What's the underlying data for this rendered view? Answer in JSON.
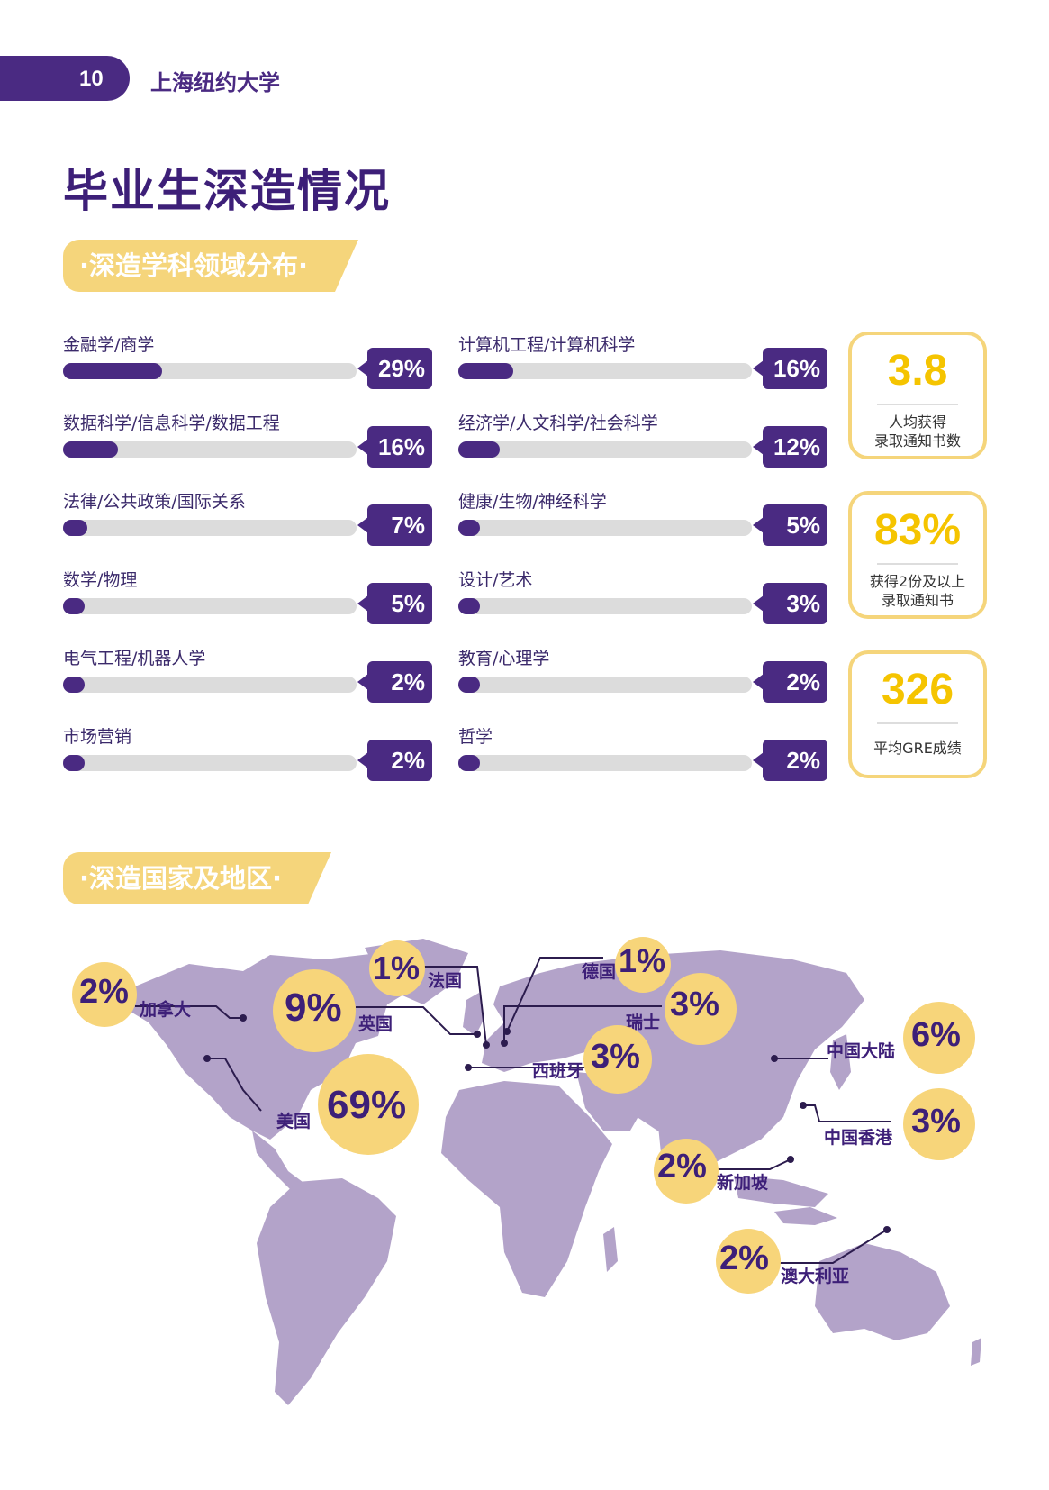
{
  "header": {
    "page_number": "10",
    "school": "上海纽约大学"
  },
  "title": "毕业生深造情况",
  "section_fields": "·深造学科领域分布·",
  "section_regions": "·深造国家及地区·",
  "fields_left": [
    {
      "label": "金融学/商学",
      "percent": 29,
      "display": "29%"
    },
    {
      "label": "数据科学/信息科学/数据工程",
      "percent": 16,
      "display": "16%"
    },
    {
      "label": "法律/公共政策/国际关系",
      "percent": 7,
      "display": "7%"
    },
    {
      "label": "数学/物理",
      "percent": 5,
      "display": "5%"
    },
    {
      "label": "电气工程/机器人学",
      "percent": 2,
      "display": "2%"
    },
    {
      "label": "市场营销",
      "percent": 2,
      "display": "2%"
    }
  ],
  "fields_right": [
    {
      "label": "计算机工程/计算机科学",
      "percent": 16,
      "display": "16%"
    },
    {
      "label": "经济学/人文科学/社会科学",
      "percent": 12,
      "display": "12%"
    },
    {
      "label": "健康/生物/神经科学",
      "percent": 5,
      "display": "5%"
    },
    {
      "label": "设计/艺术",
      "percent": 3,
      "display": "3%"
    },
    {
      "label": "教育/心理学",
      "percent": 2,
      "display": "2%"
    },
    {
      "label": "哲学",
      "percent": 2,
      "display": "2%"
    }
  ],
  "stats": [
    {
      "value": "3.8",
      "label_line1": "人均获得",
      "label_line2": "录取通知书数"
    },
    {
      "value": "83%",
      "label_line1": "获得2份及以上",
      "label_line2": "录取通知书"
    },
    {
      "value": "326",
      "label_line1": "平均GRE成绩"
    }
  ],
  "regions": [
    {
      "name": "加拿大",
      "display": "2%"
    },
    {
      "name": "英国",
      "display": "9%"
    },
    {
      "name": "美国",
      "display": "69%"
    },
    {
      "name": "法国",
      "display": "1%"
    },
    {
      "name": "德国",
      "display": "1%"
    },
    {
      "name": "瑞士",
      "display": "3%"
    },
    {
      "name": "西班牙",
      "display": "3%"
    },
    {
      "name": "中国大陆",
      "display": "6%"
    },
    {
      "name": "中国香港",
      "display": "3%"
    },
    {
      "name": "新加坡",
      "display": "2%"
    },
    {
      "name": "澳大利亚",
      "display": "2%"
    }
  ],
  "colors": {
    "purple": "#4a2a82",
    "yellow": "#f5d57b",
    "map": "#b3a3c9",
    "track": "#dcdcdc"
  }
}
